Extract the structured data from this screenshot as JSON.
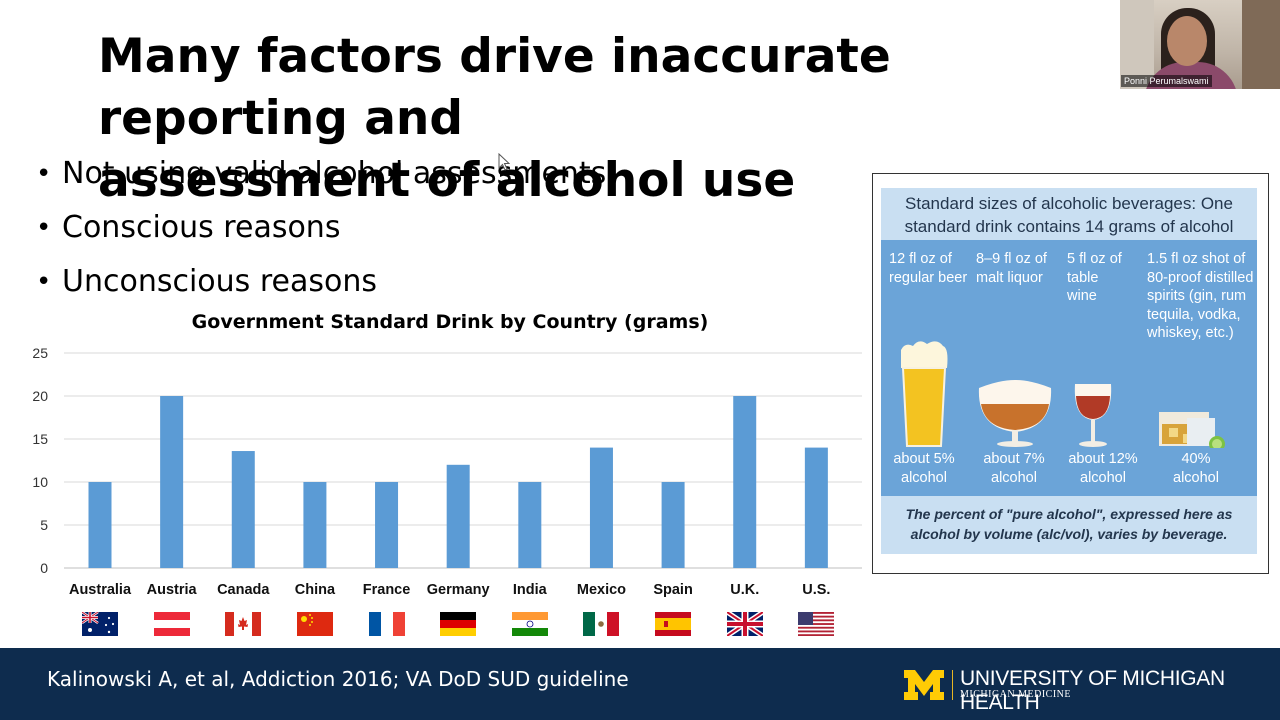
{
  "slide": {
    "title": "Many factors drive inaccurate reporting and\nassessment of alcohol use",
    "bullets": [
      {
        "text": "Not using valid alcohol assessments"
      },
      {
        "text": "Conscious reasons"
      },
      {
        "text": "Unconscious reasons"
      }
    ],
    "bullet_glyph": "•"
  },
  "chart_data": {
    "type": "bar",
    "title": "Government Standard Drink by Country (grams)",
    "xlabel": "",
    "ylabel": "",
    "categories": [
      "Australia",
      "Austria",
      "Canada",
      "China",
      "France",
      "Germany",
      "India",
      "Mexico",
      "Spain",
      "U.K.",
      "U.S."
    ],
    "values": [
      10,
      20,
      13.6,
      10,
      10,
      12,
      10,
      14,
      10,
      20,
      14
    ],
    "ylim": [
      0,
      25
    ],
    "yticks": [
      "0",
      "5",
      "10",
      "15",
      "20",
      "25"
    ],
    "grid": true,
    "bar_color": "#5b9bd5",
    "flags": [
      "australia-flag-icon",
      "austria-flag-icon",
      "canada-flag-icon",
      "china-flag-icon",
      "france-flag-icon",
      "germany-flag-icon",
      "india-flag-icon",
      "mexico-flag-icon",
      "spain-flag-icon",
      "uk-flag-icon",
      "us-flag-icon"
    ]
  },
  "infographic": {
    "header": "Standard sizes of alcoholic beverages: One standard drink contains 14 grams of alcohol",
    "drinks": [
      {
        "size": "12 fl oz of regular beer",
        "abv": "about 5% alcohol",
        "icon": "beer-glass-icon"
      },
      {
        "size": "8–9 fl oz of malt liquor",
        "abv": "about 7% alcohol",
        "icon": "snifter-glass-icon"
      },
      {
        "size": "5 fl oz of table wine",
        "abv": "about 12% alcohol",
        "icon": "wine-glass-icon"
      },
      {
        "size": "1.5 fl oz shot of 80-proof distilled spirits (gin, rum tequila, vodka, whiskey, etc.)",
        "abv": "40% alcohol",
        "icon": "spirits-glass-icon"
      }
    ],
    "footer": "The percent of \"pure alcohol\", expressed here as alcohol by volume (alc/vol), varies by beverage."
  },
  "webcam": {
    "participant_name": "Ponni Perumalswami"
  },
  "footer": {
    "citation": "Kalinowski A, et al, Addiction 2016; VA DoD SUD guideline",
    "brand_name": "UNIVERSITY OF MICHIGAN HEALTH",
    "brand_sub": "MICHIGAN MEDICINE",
    "colors": {
      "background": "#0e2c4e",
      "maize": "#ffcb05"
    }
  }
}
